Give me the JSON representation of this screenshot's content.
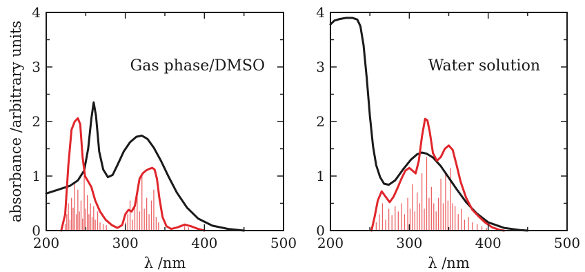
{
  "chart_data": [
    {
      "type": "line",
      "panel": "left",
      "annotation": "Gas phase/DMSO",
      "xlabel": "λ /nm",
      "ylabel": "absorbance /arbitrary units",
      "xlim": [
        200,
        500
      ],
      "ylim": [
        0,
        4
      ],
      "xticks": [
        "200",
        "300",
        "400",
        "500"
      ],
      "yticks": [
        "0",
        "1",
        "2",
        "3",
        "4"
      ],
      "colors": {
        "black": "#1a1a1a",
        "red": "#e0262b",
        "stick": "#e8474a"
      },
      "series": [
        {
          "color": "black",
          "points": [
            [
              200,
              0.68
            ],
            [
              215,
              0.75
            ],
            [
              230,
              0.82
            ],
            [
              240,
              0.92
            ],
            [
              248,
              1.1
            ],
            [
              253,
              1.5
            ],
            [
              257,
              2.05
            ],
            [
              260,
              2.35
            ],
            [
              263,
              2.1
            ],
            [
              267,
              1.45
            ],
            [
              272,
              1.12
            ],
            [
              278,
              0.98
            ],
            [
              284,
              1.02
            ],
            [
              290,
              1.2
            ],
            [
              298,
              1.45
            ],
            [
              306,
              1.62
            ],
            [
              314,
              1.72
            ],
            [
              321,
              1.74
            ],
            [
              328,
              1.68
            ],
            [
              336,
              1.52
            ],
            [
              345,
              1.28
            ],
            [
              355,
              0.98
            ],
            [
              365,
              0.7
            ],
            [
              378,
              0.42
            ],
            [
              392,
              0.22
            ],
            [
              410,
              0.09
            ],
            [
              430,
              0.03
            ],
            [
              450,
              0.0
            ]
          ]
        },
        {
          "color": "red",
          "points": [
            [
              219,
              0.0
            ],
            [
              224,
              0.3
            ],
            [
              228,
              1.2
            ],
            [
              232,
              1.85
            ],
            [
              236,
              2.0
            ],
            [
              240,
              2.06
            ],
            [
              243,
              1.95
            ],
            [
              246,
              1.35
            ],
            [
              249,
              1.0
            ],
            [
              253,
              0.9
            ],
            [
              257,
              0.8
            ],
            [
              262,
              0.55
            ],
            [
              268,
              0.35
            ],
            [
              275,
              0.2
            ],
            [
              283,
              0.1
            ],
            [
              290,
              0.05
            ],
            [
              296,
              0.1
            ],
            [
              300,
              0.3
            ],
            [
              304,
              0.38
            ],
            [
              308,
              0.35
            ],
            [
              312,
              0.45
            ],
            [
              315,
              0.7
            ],
            [
              318,
              0.95
            ],
            [
              322,
              1.05
            ],
            [
              326,
              1.1
            ],
            [
              330,
              1.13
            ],
            [
              334,
              1.15
            ],
            [
              337,
              1.12
            ],
            [
              340,
              0.95
            ],
            [
              343,
              0.6
            ],
            [
              347,
              0.25
            ],
            [
              352,
              0.08
            ],
            [
              358,
              0.03
            ],
            [
              366,
              0.06
            ],
            [
              375,
              0.11
            ],
            [
              383,
              0.08
            ],
            [
              392,
              0.03
            ],
            [
              400,
              0.0
            ]
          ]
        }
      ],
      "sticks": [
        [
          224,
          0.12
        ],
        [
          226,
          0.3
        ],
        [
          228,
          0.5
        ],
        [
          230,
          0.2
        ],
        [
          232,
          0.6
        ],
        [
          234,
          0.42
        ],
        [
          236,
          0.9
        ],
        [
          238,
          0.3
        ],
        [
          240,
          0.75
        ],
        [
          242,
          0.35
        ],
        [
          244,
          0.55
        ],
        [
          246,
          0.22
        ],
        [
          248,
          1.0
        ],
        [
          250,
          0.4
        ],
        [
          252,
          0.65
        ],
        [
          254,
          0.3
        ],
        [
          256,
          0.5
        ],
        [
          258,
          0.25
        ],
        [
          260,
          0.45
        ],
        [
          262,
          0.2
        ],
        [
          265,
          0.35
        ],
        [
          268,
          0.15
        ],
        [
          272,
          0.12
        ],
        [
          276,
          0.1
        ],
        [
          300,
          0.15
        ],
        [
          303,
          0.3
        ],
        [
          306,
          0.55
        ],
        [
          309,
          0.2
        ],
        [
          312,
          0.5
        ],
        [
          315,
          0.7
        ],
        [
          318,
          0.35
        ],
        [
          321,
          1.0
        ],
        [
          324,
          0.4
        ],
        [
          327,
          0.6
        ],
        [
          330,
          0.3
        ],
        [
          333,
          0.55
        ],
        [
          336,
          0.75
        ],
        [
          339,
          0.25
        ],
        [
          342,
          0.15
        ],
        [
          375,
          0.08
        ],
        [
          380,
          0.06
        ]
      ]
    },
    {
      "type": "line",
      "panel": "right",
      "annotation": "Water solution",
      "xlabel": "λ /nm",
      "ylabel": "",
      "xlim": [
        200,
        500
      ],
      "ylim": [
        0,
        4
      ],
      "xticks": [
        "200",
        "300",
        "400",
        "500"
      ],
      "yticks": [
        "0",
        "1",
        "2",
        "3",
        "4"
      ],
      "colors": {
        "black": "#1a1a1a",
        "red": "#e0262b",
        "stick": "#e8474a"
      },
      "series": [
        {
          "color": "black",
          "points": [
            [
              200,
              3.78
            ],
            [
              205,
              3.85
            ],
            [
              212,
              3.88
            ],
            [
              220,
              3.9
            ],
            [
              228,
              3.9
            ],
            [
              234,
              3.87
            ],
            [
              238,
              3.75
            ],
            [
              242,
              3.4
            ],
            [
              246,
              2.8
            ],
            [
              250,
              2.1
            ],
            [
              254,
              1.55
            ],
            [
              258,
              1.2
            ],
            [
              263,
              0.98
            ],
            [
              268,
              0.86
            ],
            [
              274,
              0.84
            ],
            [
              282,
              0.92
            ],
            [
              292,
              1.12
            ],
            [
              302,
              1.3
            ],
            [
              310,
              1.4
            ],
            [
              316,
              1.43
            ],
            [
              322,
              1.41
            ],
            [
              330,
              1.34
            ],
            [
              340,
              1.18
            ],
            [
              350,
              0.97
            ],
            [
              360,
              0.76
            ],
            [
              372,
              0.52
            ],
            [
              385,
              0.32
            ],
            [
              400,
              0.15
            ],
            [
              420,
              0.05
            ],
            [
              440,
              0.01
            ],
            [
              450,
              0.0
            ]
          ]
        },
        {
          "color": "red",
          "points": [
            [
              252,
              0.0
            ],
            [
              256,
              0.25
            ],
            [
              260,
              0.55
            ],
            [
              265,
              0.72
            ],
            [
              270,
              0.62
            ],
            [
              275,
              0.52
            ],
            [
              280,
              0.62
            ],
            [
              285,
              0.78
            ],
            [
              290,
              0.95
            ],
            [
              295,
              1.1
            ],
            [
              300,
              1.15
            ],
            [
              304,
              1.1
            ],
            [
              308,
              1.05
            ],
            [
              312,
              1.28
            ],
            [
              316,
              1.72
            ],
            [
              320,
              2.05
            ],
            [
              323,
              2.02
            ],
            [
              326,
              1.8
            ],
            [
              330,
              1.42
            ],
            [
              335,
              1.28
            ],
            [
              340,
              1.35
            ],
            [
              345,
              1.5
            ],
            [
              350,
              1.56
            ],
            [
              355,
              1.48
            ],
            [
              360,
              1.2
            ],
            [
              365,
              0.9
            ],
            [
              372,
              0.6
            ],
            [
              380,
              0.38
            ],
            [
              388,
              0.26
            ],
            [
              396,
              0.15
            ],
            [
              405,
              0.06
            ],
            [
              415,
              0.01
            ],
            [
              420,
              0.0
            ]
          ]
        }
      ],
      "sticks": [
        [
          258,
          0.15
        ],
        [
          262,
          0.3
        ],
        [
          266,
          0.5
        ],
        [
          270,
          0.2
        ],
        [
          274,
          0.4
        ],
        [
          278,
          0.28
        ],
        [
          282,
          0.45
        ],
        [
          286,
          0.35
        ],
        [
          290,
          0.5
        ],
        [
          294,
          0.3
        ],
        [
          298,
          0.6
        ],
        [
          301,
          0.4
        ],
        [
          304,
          0.85
        ],
        [
          307,
          0.35
        ],
        [
          310,
          0.7
        ],
        [
          313,
          0.5
        ],
        [
          316,
          1.05
        ],
        [
          319,
          0.4
        ],
        [
          322,
          1.35
        ],
        [
          325,
          0.6
        ],
        [
          328,
          0.8
        ],
        [
          331,
          0.5
        ],
        [
          334,
          0.35
        ],
        [
          337,
          0.6
        ],
        [
          340,
          0.95
        ],
        [
          343,
          0.5
        ],
        [
          346,
          1.05
        ],
        [
          349,
          0.55
        ],
        [
          352,
          1.15
        ],
        [
          355,
          0.5
        ],
        [
          358,
          0.45
        ],
        [
          362,
          0.3
        ],
        [
          366,
          0.4
        ],
        [
          370,
          0.2
        ],
        [
          375,
          0.25
        ],
        [
          380,
          0.15
        ],
        [
          386,
          0.12
        ],
        [
          392,
          0.08
        ],
        [
          398,
          0.05
        ]
      ]
    }
  ]
}
